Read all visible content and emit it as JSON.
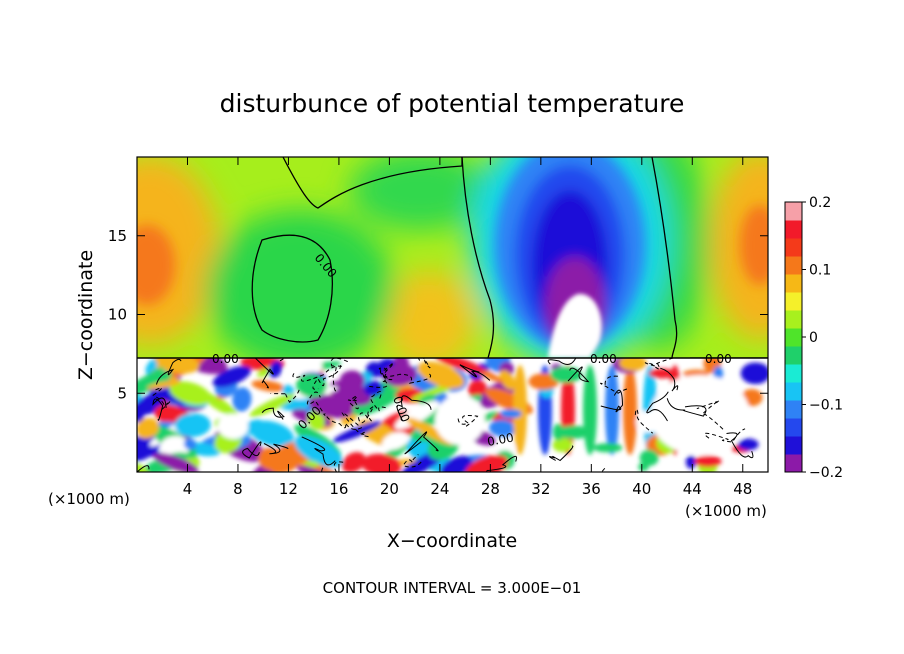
{
  "chart_data": {
    "type": "heatmap",
    "title": "disturbunce of potential temperature",
    "xlabel": "X−coordinate",
    "ylabel": "Z−coordinate",
    "x_unit_left": "(×1000 m)",
    "x_unit_right": "(×1000 m)",
    "xlim": [
      0,
      50
    ],
    "ylim": [
      0,
      20
    ],
    "x_ticks": [
      4,
      8,
      12,
      16,
      20,
      24,
      28,
      32,
      36,
      40,
      44,
      48
    ],
    "y_ticks": [
      5,
      10,
      15
    ],
    "colorbar": {
      "vmin": -0.2,
      "vmax": 0.2,
      "ticks": [
        "0.2",
        "0.1",
        "0",
        "−0.1",
        "−0.2"
      ],
      "colors": [
        "#8c1aa8",
        "#1f10d8",
        "#2448ee",
        "#2f82f5",
        "#18c4f4",
        "#1aebd4",
        "#1fd06a",
        "#4fe42a",
        "#a8f01e",
        "#f5f02a",
        "#f6b816",
        "#f5781a",
        "#f43a1a",
        "#f21a2a",
        "#f6a0a8"
      ]
    },
    "contour_labels": [
      "0.00",
      "0.00",
      "0.00",
      "0.00",
      "0.00",
      "0.00",
      "0.00"
    ],
    "footer": "CONTOUR INTERVAL = 3.000E−01",
    "upper_field": {
      "description_regions": [
        {
          "x": 1.5,
          "z": 13.5,
          "value": 0.11
        },
        {
          "x": 48.5,
          "z": 15,
          "value": 0.12
        },
        {
          "x": 12,
          "z": 13,
          "value": 0.0
        },
        {
          "x": 34,
          "z": 14,
          "value": -0.17
        },
        {
          "x": 34.5,
          "z": 11,
          "value": -0.2
        },
        {
          "x": 22.5,
          "z": 11,
          "value": 0.08
        }
      ]
    }
  }
}
